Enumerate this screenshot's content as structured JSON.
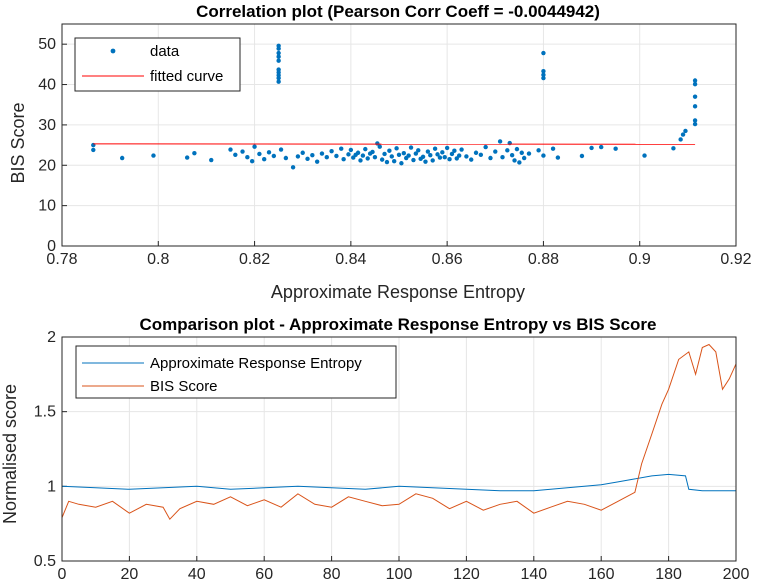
{
  "colors": {
    "data": "#0072BD",
    "fit": "#FF0000",
    "series1": "#0072BD",
    "series2": "#D95319",
    "grid": "#E6E6E6",
    "axis": "#262626"
  },
  "chart_data": [
    {
      "type": "scatter",
      "title": "Correlation plot (Pearson Corr Coeff = -0.0044942)",
      "xlabel": "Approximate  Response Entropy",
      "ylabel": "BIS Score",
      "xlim": [
        0.78,
        0.92
      ],
      "ylim": [
        0,
        55
      ],
      "xticks": [
        "0.78",
        "0.8",
        "0.82",
        "0.84",
        "0.86",
        "0.88",
        "0.9",
        "0.92"
      ],
      "yticks": [
        "0",
        "10",
        "20",
        "30",
        "40",
        "50"
      ],
      "grid": true,
      "legend": "top-left",
      "series": [
        {
          "name": "data",
          "marker": "dot",
          "points": [
            [
              0.7865,
              25.0
            ],
            [
              0.7865,
              23.8
            ],
            [
              0.7925,
              21.8
            ],
            [
              0.799,
              22.4
            ],
            [
              0.806,
              21.9
            ],
            [
              0.8075,
              23.0
            ],
            [
              0.811,
              21.3
            ],
            [
              0.815,
              23.9
            ],
            [
              0.816,
              22.6
            ],
            [
              0.8175,
              23.4
            ],
            [
              0.8185,
              22.0
            ],
            [
              0.8195,
              21.0
            ],
            [
              0.82,
              24.6
            ],
            [
              0.821,
              22.8
            ],
            [
              0.822,
              21.5
            ],
            [
              0.823,
              23.2
            ],
            [
              0.824,
              22.3
            ],
            [
              0.8255,
              23.9
            ],
            [
              0.8265,
              21.8
            ],
            [
              0.828,
              19.5
            ],
            [
              0.829,
              22.2
            ],
            [
              0.83,
              23.1
            ],
            [
              0.831,
              21.6
            ],
            [
              0.832,
              22.5
            ],
            [
              0.833,
              20.9
            ],
            [
              0.834,
              22.9
            ],
            [
              0.835,
              22.0
            ],
            [
              0.836,
              23.5
            ],
            [
              0.837,
              22.3
            ],
            [
              0.838,
              24.1
            ],
            [
              0.8385,
              21.5
            ],
            [
              0.8395,
              22.7
            ],
            [
              0.84,
              23.8
            ],
            [
              0.8405,
              21.9
            ],
            [
              0.841,
              22.6
            ],
            [
              0.8415,
              23.1
            ],
            [
              0.842,
              21.2
            ],
            [
              0.8425,
              22.4
            ],
            [
              0.843,
              24.0
            ],
            [
              0.8435,
              21.7
            ],
            [
              0.844,
              22.9
            ],
            [
              0.8445,
              23.3
            ],
            [
              0.845,
              22.0
            ],
            [
              0.8455,
              25.4
            ],
            [
              0.846,
              24.6
            ],
            [
              0.8465,
              21.4
            ],
            [
              0.847,
              22.8
            ],
            [
              0.8475,
              20.8
            ],
            [
              0.848,
              23.6
            ],
            [
              0.8485,
              22.2
            ],
            [
              0.849,
              21.0
            ],
            [
              0.8495,
              24.2
            ],
            [
              0.85,
              22.6
            ],
            [
              0.8505,
              20.5
            ],
            [
              0.851,
              23.0
            ],
            [
              0.8515,
              21.8
            ],
            [
              0.852,
              22.4
            ],
            [
              0.8525,
              24.4
            ],
            [
              0.853,
              21.3
            ],
            [
              0.8535,
              22.9
            ],
            [
              0.854,
              23.7
            ],
            [
              0.8545,
              21.6
            ],
            [
              0.855,
              22.1
            ],
            [
              0.8555,
              20.9
            ],
            [
              0.856,
              23.4
            ],
            [
              0.8565,
              22.5
            ],
            [
              0.857,
              21.2
            ],
            [
              0.8575,
              24.1
            ],
            [
              0.858,
              22.7
            ],
            [
              0.8585,
              21.9
            ],
            [
              0.859,
              23.2
            ],
            [
              0.8595,
              22.0
            ],
            [
              0.86,
              24.3
            ],
            [
              0.8605,
              21.5
            ],
            [
              0.861,
              22.8
            ],
            [
              0.8615,
              23.6
            ],
            [
              0.862,
              21.7
            ],
            [
              0.8625,
              22.4
            ],
            [
              0.863,
              23.9
            ],
            [
              0.864,
              22.2
            ],
            [
              0.865,
              21.4
            ],
            [
              0.866,
              23.1
            ],
            [
              0.867,
              22.6
            ],
            [
              0.868,
              24.5
            ],
            [
              0.869,
              21.8
            ],
            [
              0.87,
              23.4
            ],
            [
              0.871,
              25.9
            ],
            [
              0.8715,
              22.0
            ],
            [
              0.8725,
              23.7
            ],
            [
              0.873,
              25.5
            ],
            [
              0.8735,
              22.5
            ],
            [
              0.874,
              21.2
            ],
            [
              0.8745,
              24.0
            ],
            [
              0.875,
              20.7
            ],
            [
              0.8755,
              23.1
            ],
            [
              0.876,
              21.8
            ],
            [
              0.877,
              22.9
            ],
            [
              0.879,
              23.7
            ],
            [
              0.88,
              22.4
            ],
            [
              0.882,
              24.1
            ],
            [
              0.883,
              21.9
            ],
            [
              0.888,
              22.3
            ],
            [
              0.89,
              24.3
            ],
            [
              0.892,
              24.5
            ],
            [
              0.895,
              24.1
            ],
            [
              0.901,
              22.4
            ],
            [
              0.907,
              24.2
            ],
            [
              0.9085,
              26.4
            ],
            [
              0.909,
              27.6
            ],
            [
              0.9095,
              28.5
            ],
            [
              0.825,
              49.6
            ],
            [
              0.825,
              48.9
            ],
            [
              0.825,
              47.8
            ],
            [
              0.825,
              46.9
            ],
            [
              0.825,
              45.9
            ],
            [
              0.825,
              43.7
            ],
            [
              0.825,
              43.0
            ],
            [
              0.825,
              42.3
            ],
            [
              0.825,
              41.6
            ],
            [
              0.825,
              40.7
            ],
            [
              0.88,
              47.8
            ],
            [
              0.88,
              43.3
            ],
            [
              0.88,
              42.4
            ],
            [
              0.88,
              41.6
            ],
            [
              0.9115,
              41.0
            ],
            [
              0.9115,
              40.1
            ],
            [
              0.9115,
              37.0
            ],
            [
              0.9115,
              34.6
            ],
            [
              0.9115,
              31.1
            ],
            [
              0.9115,
              30.2
            ]
          ]
        },
        {
          "name": "fitted curve",
          "marker": "line",
          "x": [
            0.7865,
            0.9115
          ],
          "y": [
            25.3,
            25.2
          ]
        }
      ]
    },
    {
      "type": "line",
      "title": "Comparison plot - Approximate  Response Entropy vs BIS Score",
      "xlabel": "",
      "ylabel": "Normalised score",
      "xlim": [
        0,
        200
      ],
      "ylim": [
        0.5,
        2
      ],
      "xticks": [
        "0",
        "20",
        "40",
        "60",
        "80",
        "100",
        "120",
        "140",
        "160",
        "180",
        "200"
      ],
      "yticks": [
        "0.5",
        "1",
        "1.5",
        "2"
      ],
      "grid": true,
      "legend": "top-left",
      "series": [
        {
          "name": "Approximate  Response Entropy",
          "x": [
            0,
            10,
            20,
            30,
            40,
            50,
            60,
            70,
            80,
            90,
            100,
            110,
            120,
            130,
            140,
            150,
            160,
            165,
            170,
            175,
            180,
            185,
            186,
            190,
            200
          ],
          "y": [
            1.0,
            0.99,
            0.98,
            0.99,
            1.0,
            0.98,
            0.99,
            1.0,
            0.99,
            0.98,
            1.0,
            0.99,
            0.98,
            0.97,
            0.97,
            0.99,
            1.01,
            1.03,
            1.05,
            1.07,
            1.08,
            1.07,
            0.98,
            0.97,
            0.97
          ]
        },
        {
          "name": "BIS Score",
          "x": [
            0,
            2,
            5,
            10,
            15,
            20,
            25,
            30,
            32,
            35,
            40,
            45,
            50,
            55,
            60,
            65,
            70,
            75,
            80,
            85,
            90,
            95,
            100,
            105,
            110,
            115,
            120,
            125,
            130,
            135,
            140,
            145,
            150,
            155,
            160,
            165,
            170,
            172,
            175,
            178,
            180,
            183,
            186,
            188,
            190,
            192,
            194,
            196,
            198,
            200
          ],
          "y": [
            0.79,
            0.9,
            0.88,
            0.86,
            0.9,
            0.82,
            0.88,
            0.86,
            0.78,
            0.85,
            0.9,
            0.88,
            0.93,
            0.87,
            0.91,
            0.86,
            0.95,
            0.88,
            0.86,
            0.93,
            0.9,
            0.87,
            0.88,
            0.95,
            0.92,
            0.85,
            0.9,
            0.84,
            0.88,
            0.9,
            0.82,
            0.86,
            0.9,
            0.88,
            0.84,
            0.9,
            0.96,
            1.15,
            1.35,
            1.55,
            1.65,
            1.85,
            1.9,
            1.75,
            1.93,
            1.95,
            1.9,
            1.65,
            1.72,
            1.82
          ]
        }
      ]
    }
  ]
}
